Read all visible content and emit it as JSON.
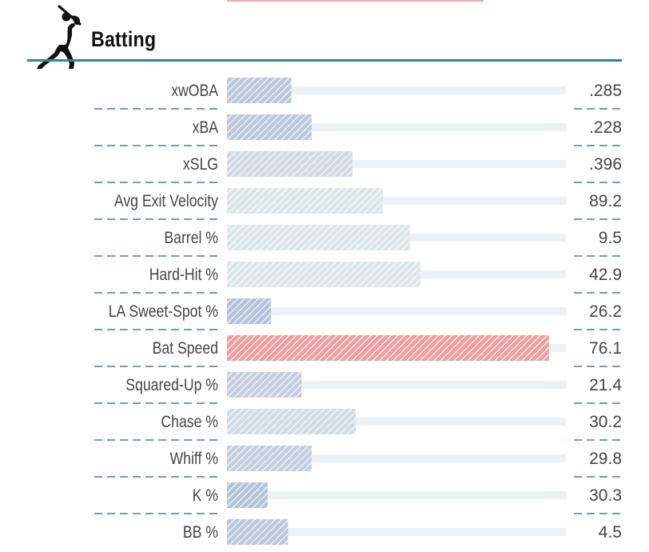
{
  "header": {
    "title": "Batting",
    "icon": "baseball-batter-icon"
  },
  "chart_data": {
    "type": "bar",
    "orientation": "horizontal",
    "title": "Batting",
    "value_scale": "percentile",
    "xlim": [
      0,
      100
    ],
    "categories": [
      "xwOBA",
      "xBA",
      "xSLG",
      "Avg Exit Velocity",
      "Barrel %",
      "Hard-Hit %",
      "LA Sweet-Spot %",
      "Bat Speed",
      "Squared-Up %",
      "Chase %",
      "Whiff %",
      "K %",
      "BB %"
    ],
    "labels": [
      ".285",
      ".228",
      ".396",
      "89.2",
      "9.5",
      "42.9",
      "26.2",
      "76.1",
      "21.4",
      "30.2",
      "29.8",
      "30.3",
      "4.5"
    ],
    "percentiles": [
      19,
      25,
      37,
      46,
      54,
      57,
      13,
      95,
      22,
      38,
      25,
      12,
      18
    ],
    "colors": [
      "#bcc6dc",
      "#bcc6dc",
      "#d0d9e3",
      "#dbe6e6",
      "#dde7e7",
      "#dde7e7",
      "#b4c3d9",
      "#ee9e9e",
      "#c4cee0",
      "#d3dbe3",
      "#c4cee0",
      "#b4c3d9",
      "#bcc6dc"
    ],
    "track_color": "#edf1f4",
    "divider_color": "#2e8b87"
  }
}
